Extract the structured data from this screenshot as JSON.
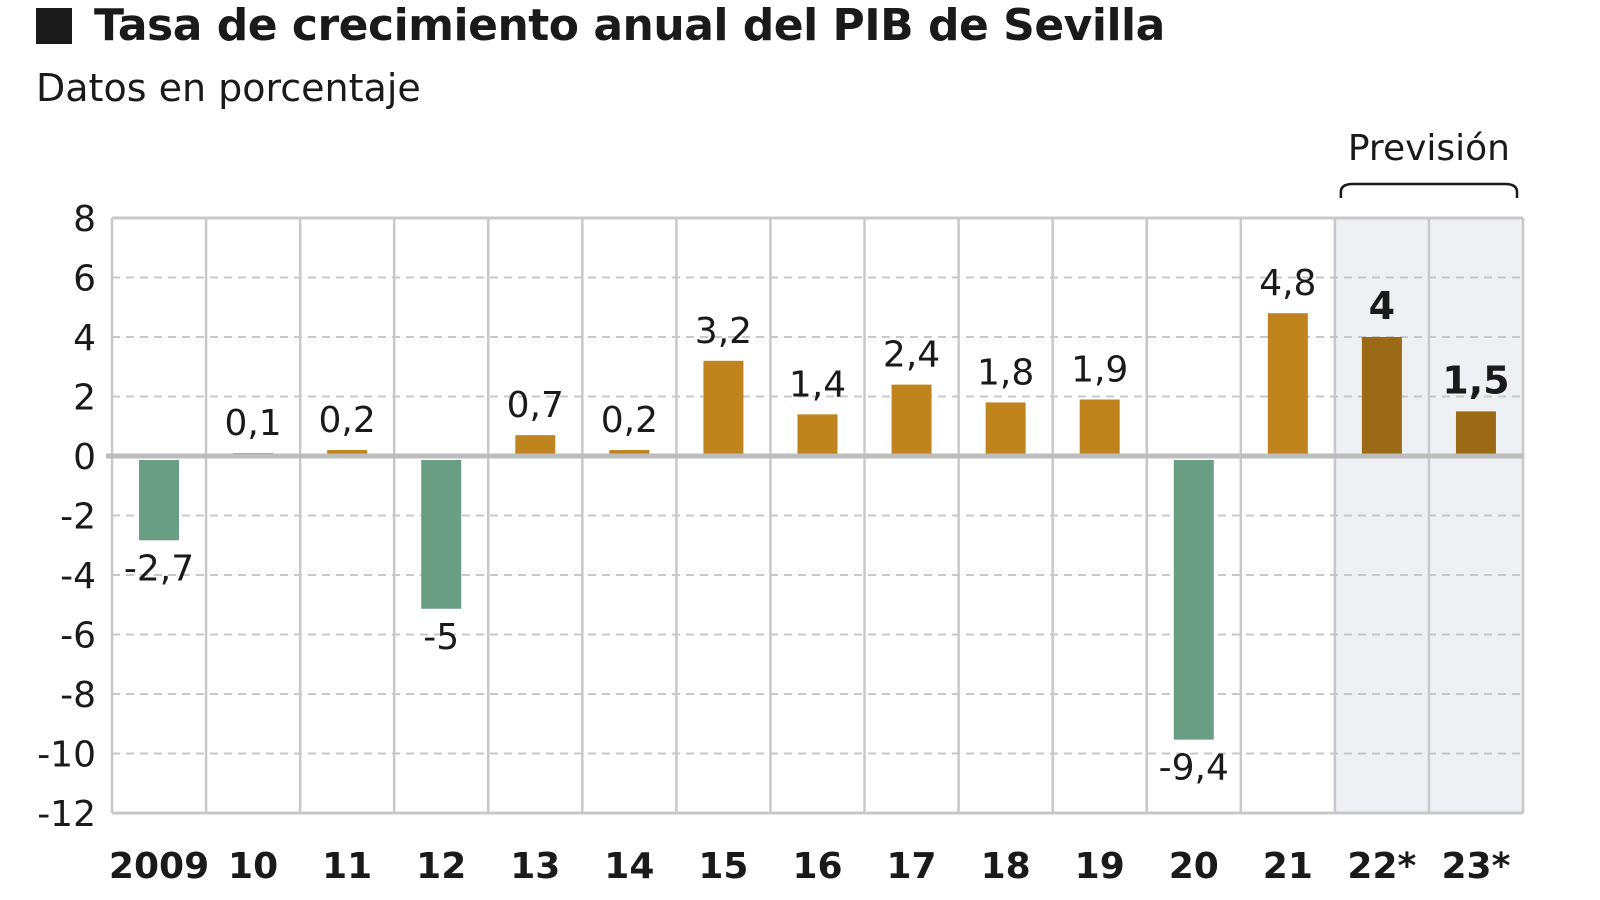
{
  "chart_data": {
    "type": "bar",
    "title": "Tasa de crecimiento anual del PIB de Sevilla",
    "subtitle": "Datos en porcentaje",
    "categories": [
      "2009",
      "10",
      "11",
      "12",
      "13",
      "14",
      "15",
      "16",
      "17",
      "18",
      "19",
      "20",
      "21",
      "22*",
      "23*"
    ],
    "values": [
      -2.7,
      0.1,
      0.2,
      -5,
      0.7,
      0.2,
      3.2,
      1.4,
      2.4,
      1.8,
      1.9,
      -9.4,
      4.8,
      4,
      1.5
    ],
    "data_labels": [
      "-2,7",
      "0,1",
      "0,2",
      "-5",
      "0,7",
      "0,2",
      "3,2",
      "1,4",
      "2,4",
      "1,8",
      "1,9",
      "-9,4",
      "4,8",
      "4",
      "1,5"
    ],
    "forecast": [
      false,
      false,
      false,
      false,
      false,
      false,
      false,
      false,
      false,
      false,
      false,
      false,
      false,
      true,
      true
    ],
    "annotation": "Previsión",
    "ylim": [
      -12,
      8
    ],
    "yticks": [
      "8",
      "6",
      "4",
      "2",
      "0",
      "-2",
      "-4",
      "-6",
      "-8",
      "-10",
      "-12"
    ],
    "ytick_values": [
      8,
      6,
      4,
      2,
      0,
      -2,
      -4,
      -6,
      -8,
      -10,
      -12
    ],
    "grid": true,
    "colors": {
      "positive": "#c0841f",
      "negative": "#6a9e84",
      "forecast": "#9a6a17",
      "forecast_bg": "#eef0f4",
      "grid": "#c8c8c8"
    }
  }
}
